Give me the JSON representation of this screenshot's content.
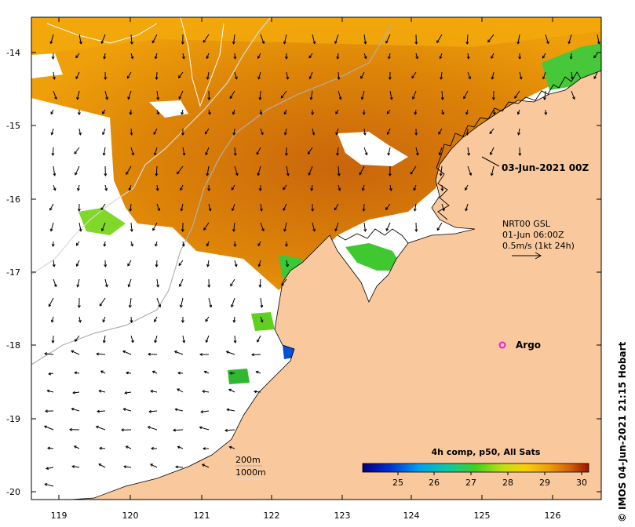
{
  "map": {
    "lon_ticks": [
      "119",
      "120",
      "121",
      "122",
      "123",
      "124",
      "125",
      "126"
    ],
    "lat_ticks": [
      "-14",
      "-15",
      "-16",
      "-17",
      "-18",
      "-19",
      "-20"
    ],
    "date_label": "03-Jun-2021 00Z",
    "current_info": {
      "line1": "NRT00 GSL",
      "line2": "01-Jun 06:00Z",
      "line3": "0.5m/s (1kt 24h)"
    },
    "argo_label": "Argo",
    "depth_legend": {
      "d1": "200m",
      "d2": "1000m"
    },
    "colorbar": {
      "title": "4h comp, p50, All Sats",
      "ticks": [
        "25",
        "26",
        "27",
        "28",
        "29",
        "30"
      ]
    },
    "credit": "IMOS 04-Jun-2021 21:15 Hobart",
    "copyright_symbol": "©",
    "colors": {
      "land": "#f9c99d",
      "no_data": "#ffffff",
      "sst_warm": "#e08a06",
      "sst_hot": "#c8640a",
      "sst_mid": "#f5a80c",
      "sst_cool": "#38c838",
      "argo": "#e020e0"
    }
  }
}
